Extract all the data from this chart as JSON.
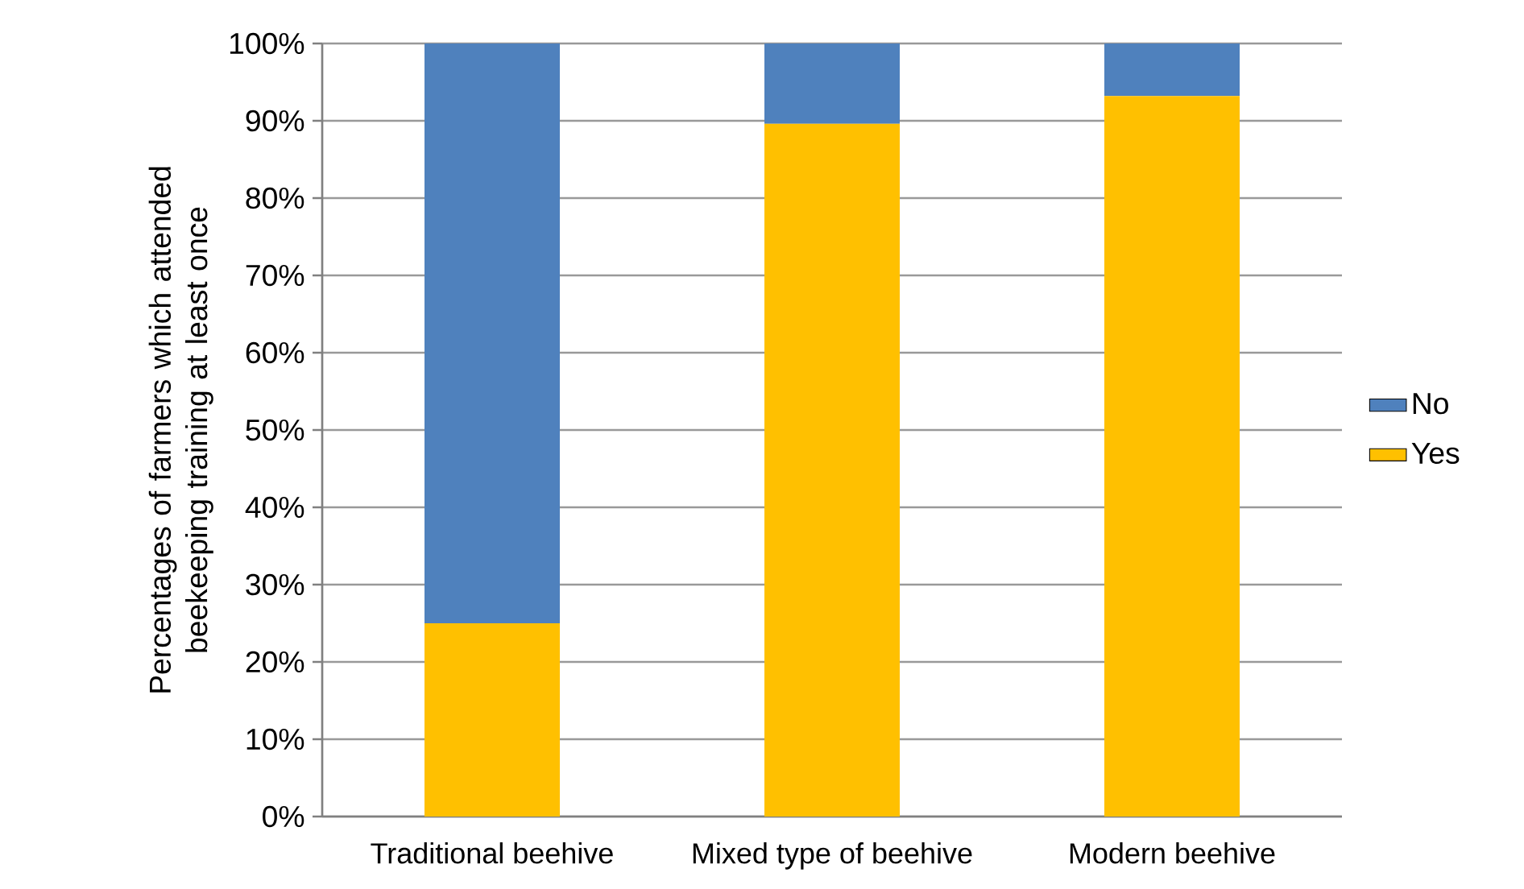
{
  "chart_data": {
    "type": "bar",
    "stacked": true,
    "ylabel": "Percentages of farmers which attended beekeeping training at least once",
    "categories": [
      "Traditional beehive",
      "Mixed type of beehive",
      "Modern beehive"
    ],
    "series": [
      {
        "name": "Yes",
        "color": "#ffc000",
        "values": [
          25,
          89.6,
          93.2
        ]
      },
      {
        "name": "No",
        "color": "#4f81bd",
        "values": [
          75,
          10.4,
          6.8
        ]
      }
    ],
    "ylim": [
      0,
      100
    ],
    "yticks": [
      {
        "value": 0,
        "label": "0%"
      },
      {
        "value": 10,
        "label": "10%"
      },
      {
        "value": 20,
        "label": "20%"
      },
      {
        "value": 30,
        "label": "30%"
      },
      {
        "value": 40,
        "label": "40%"
      },
      {
        "value": 50,
        "label": "50%"
      },
      {
        "value": 60,
        "label": "60%"
      },
      {
        "value": 70,
        "label": "70%"
      },
      {
        "value": 80,
        "label": "80%"
      },
      {
        "value": 90,
        "label": "90%"
      },
      {
        "value": 100,
        "label": "100%"
      }
    ],
    "grid": "y",
    "legend": "right"
  }
}
